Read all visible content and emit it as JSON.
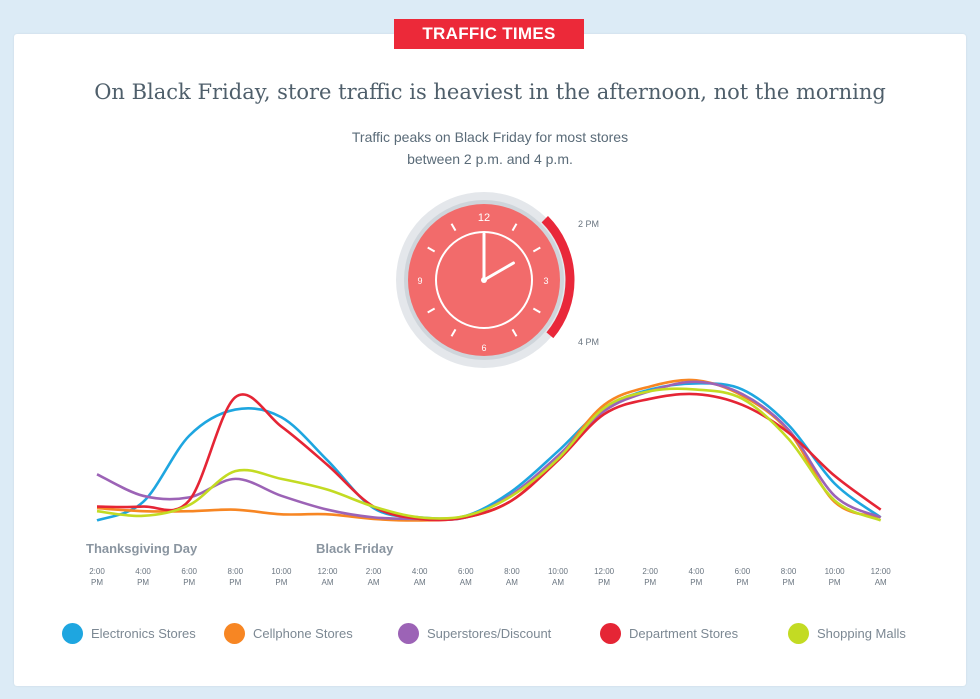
{
  "banner": "TRAFFIC TIMES",
  "title": "On Black Friday, store traffic is heaviest in the afternoon, not the morning",
  "subtitle_line1": "Traffic peaks on Black Friday for most stores",
  "subtitle_line2": "between 2 p.m. and 4 p.m.",
  "clock": {
    "numbers": [
      "12",
      "3",
      "6",
      "9"
    ],
    "range_start_label": "2 PM",
    "range_end_label": "4 PM",
    "hour_hand": 2,
    "minute_hand": 0,
    "face_color": "#f26b6b",
    "arc_color": "#e9283a"
  },
  "period_labels": [
    "Thanksgiving Day",
    "Black Friday"
  ],
  "chart_data": {
    "type": "line",
    "x": [
      "2:00 PM",
      "4:00 PM",
      "6:00 PM",
      "8:00 PM",
      "10:00 PM",
      "12:00 AM",
      "2:00 AM",
      "4:00 AM",
      "6:00 AM",
      "8:00 AM",
      "10:00 AM",
      "12:00 PM",
      "2:00 PM",
      "4:00 PM",
      "6:00 PM",
      "8:00 PM",
      "10:00 PM",
      "12:00 AM"
    ],
    "x_ticks": [
      {
        "time": "2:00",
        "ampm": "PM"
      },
      {
        "time": "4:00",
        "ampm": "PM"
      },
      {
        "time": "6:00",
        "ampm": "PM"
      },
      {
        "time": "8:00",
        "ampm": "PM"
      },
      {
        "time": "10:00",
        "ampm": "PM"
      },
      {
        "time": "12:00",
        "ampm": "AM"
      },
      {
        "time": "2:00",
        "ampm": "AM"
      },
      {
        "time": "4:00",
        "ampm": "AM"
      },
      {
        "time": "6:00",
        "ampm": "AM"
      },
      {
        "time": "8:00",
        "ampm": "AM"
      },
      {
        "time": "10:00",
        "ampm": "AM"
      },
      {
        "time": "12:00",
        "ampm": "PM"
      },
      {
        "time": "2:00",
        "ampm": "PM"
      },
      {
        "time": "4:00",
        "ampm": "PM"
      },
      {
        "time": "6:00",
        "ampm": "PM"
      },
      {
        "time": "8:00",
        "ampm": "PM"
      },
      {
        "time": "10:00",
        "ampm": "PM"
      },
      {
        "time": "12:00",
        "ampm": "AM"
      }
    ],
    "series": [
      {
        "name": "Electronics Stores",
        "color": "#1ea6e0",
        "values": [
          1,
          13,
          56,
          73,
          68,
          40,
          9,
          3,
          4,
          20,
          46,
          74,
          86,
          90,
          86,
          63,
          25,
          3
        ]
      },
      {
        "name": "Cellphone Stores",
        "color": "#f78623",
        "values": [
          9,
          7,
          7,
          8,
          5,
          5,
          2,
          1,
          3,
          14,
          42,
          76,
          88,
          92,
          82,
          59,
          13,
          3
        ]
      },
      {
        "name": "Superstores/Discount",
        "color": "#9c63b6",
        "values": [
          31,
          17,
          16,
          28,
          17,
          8,
          3,
          2,
          3,
          18,
          43,
          72,
          85,
          91,
          83,
          60,
          17,
          3
        ]
      },
      {
        "name": "Department Stores",
        "color": "#e52535",
        "values": [
          10,
          10,
          14,
          81,
          62,
          37,
          10,
          2,
          3,
          14,
          40,
          70,
          80,
          83,
          76,
          58,
          30,
          8
        ]
      },
      {
        "name": "Shopping Malls",
        "color": "#c3db23",
        "values": [
          7,
          4,
          11,
          33,
          28,
          21,
          10,
          3,
          4,
          17,
          41,
          74,
          85,
          86,
          80,
          54,
          14,
          1
        ]
      }
    ],
    "ylim": [
      0,
      100
    ]
  }
}
